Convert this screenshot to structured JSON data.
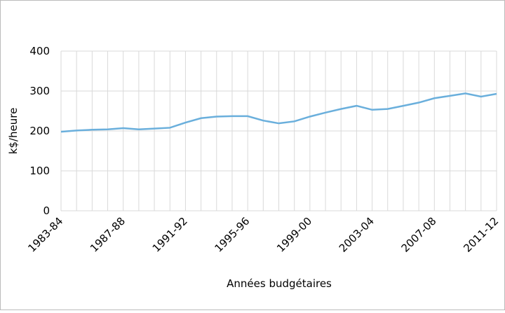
{
  "chart_data": {
    "type": "line",
    "x_label": "Années budgétaires",
    "y_label": "k$/heure",
    "categories": [
      "1983-84",
      null,
      null,
      null,
      "1987-88",
      null,
      null,
      null,
      "1991-92",
      null,
      null,
      null,
      "1995-96",
      null,
      null,
      null,
      "1999-00",
      null,
      null,
      null,
      "2003-04",
      null,
      null,
      null,
      "2007-08",
      null,
      null,
      null,
      "2011-12"
    ],
    "series": [
      {
        "name": null,
        "color": "#6aafdc",
        "values": [
          198,
          201,
          203,
          204,
          207,
          204,
          206,
          208,
          221,
          232,
          236,
          237,
          237,
          226,
          219,
          224,
          236,
          246,
          255,
          263,
          253,
          255,
          263,
          271,
          282,
          288,
          294,
          286,
          293
        ]
      }
    ],
    "ylim": [
      0,
      400
    ],
    "yticks": [
      0,
      100,
      200,
      300,
      400
    ],
    "grid": true
  }
}
